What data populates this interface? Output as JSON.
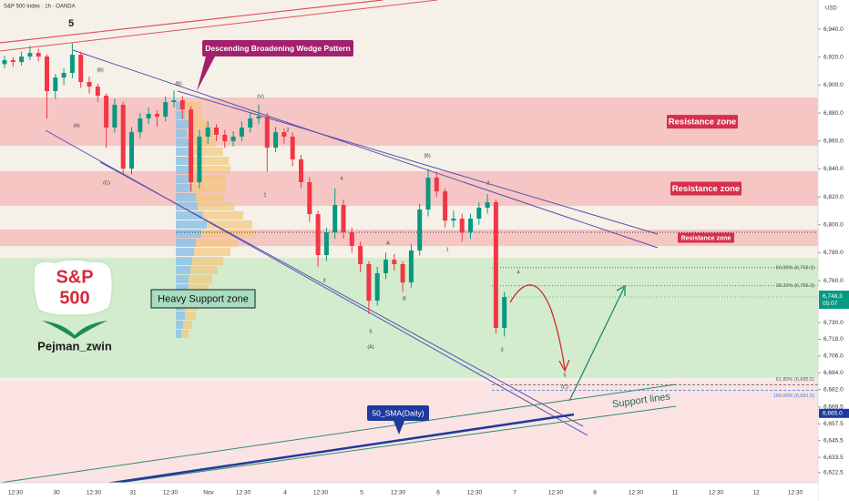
{
  "chart_data": {
    "type": "candlestick",
    "title": "S&P 500 Index · 1h · OANDA",
    "currency": "USD",
    "up_color": "#089981",
    "down_color": "#f23645",
    "ohlc": [
      [
        6915.0,
        6921,
        6912,
        6917.8
      ],
      [
        6917.8,
        6920,
        6913,
        6916.5
      ],
      [
        6916.5,
        6924,
        6914,
        6920.4
      ],
      [
        6920.4,
        6928,
        6918,
        6923.0
      ],
      [
        6923.0,
        6926,
        6917,
        6920.4
      ],
      [
        6920.4,
        6922,
        6876,
        6895.7
      ],
      [
        6895.7,
        6908,
        6890,
        6905.4
      ],
      [
        6905.4,
        6912,
        6900,
        6908.7
      ],
      [
        6908.7,
        6930,
        6905,
        6921.7
      ],
      [
        6921.7,
        6924,
        6898,
        6902.2
      ],
      [
        6902.2,
        6906,
        6894,
        6898.9
      ],
      [
        6898.9,
        6901,
        6888,
        6892.4
      ],
      [
        6892.4,
        6894,
        6855,
        6869.6
      ],
      [
        6869.6,
        6890,
        6866,
        6885.9
      ],
      [
        6885.9,
        6888,
        6836,
        6840.2
      ],
      [
        6840.2,
        6870,
        6836,
        6866.3
      ],
      [
        6866.3,
        6880,
        6862,
        6876.1
      ],
      [
        6876.1,
        6884,
        6872,
        6879.4
      ],
      [
        6879.4,
        6882,
        6870,
        6877.4
      ],
      [
        6877.4,
        6892,
        6874,
        6887.8
      ],
      [
        6887.8,
        6896,
        6884,
        6889.1
      ],
      [
        6889.1,
        6892,
        6876,
        6882.6
      ],
      [
        6882.6,
        6885,
        6824,
        6830.5
      ],
      [
        6830.5,
        6868,
        6826,
        6863.1
      ],
      [
        6863.1,
        6874,
        6858,
        6869.6
      ],
      [
        6869.6,
        6872,
        6860,
        6864.4
      ],
      [
        6864.4,
        6868,
        6855,
        6859.8
      ],
      [
        6859.8,
        6867,
        6856,
        6863.1
      ],
      [
        6863.1,
        6874,
        6860,
        6869.6
      ],
      [
        6869.6,
        6880,
        6866,
        6876.1
      ],
      [
        6876.1,
        6886,
        6872,
        6877.4
      ],
      [
        6877.4,
        6880,
        6838,
        6855.2
      ],
      [
        6855.2,
        6870,
        6852,
        6866.3
      ],
      [
        6866.3,
        6869,
        6858,
        6863.1
      ],
      [
        6863.1,
        6866,
        6842,
        6846.8
      ],
      [
        6846.8,
        6850,
        6826,
        6830.5
      ],
      [
        6830.5,
        6834,
        6802,
        6807.6
      ],
      [
        6807.6,
        6810,
        6770,
        6778.3
      ],
      [
        6778.3,
        6798,
        6774,
        6794.6
      ],
      [
        6794.6,
        6826,
        6790,
        6814.2
      ],
      [
        6814.2,
        6818,
        6790,
        6794.6
      ],
      [
        6794.6,
        6798,
        6780,
        6784.8
      ],
      [
        6784.8,
        6788,
        6766,
        6771.8
      ],
      [
        6771.8,
        6774,
        6736,
        6745.7
      ],
      [
        6745.7,
        6770,
        6742,
        6765.3
      ],
      [
        6765.3,
        6780,
        6761,
        6775.0
      ],
      [
        6775.0,
        6779,
        6767,
        6771.8
      ],
      [
        6771.8,
        6774,
        6752,
        6758.7
      ],
      [
        6758.7,
        6786,
        6755,
        6781.6
      ],
      [
        6781.6,
        6815,
        6778,
        6810.9
      ],
      [
        6810.9,
        6840,
        6806,
        6833.7
      ],
      [
        6833.7,
        6838,
        6820,
        6823.9
      ],
      [
        6823.9,
        6826,
        6798,
        6803.0
      ],
      [
        6803.0,
        6810,
        6798,
        6804.4
      ],
      [
        6804.4,
        6808,
        6788,
        6794.6
      ],
      [
        6794.6,
        6808,
        6790,
        6804.4
      ],
      [
        6804.4,
        6816,
        6800,
        6812.2
      ],
      [
        6812.2,
        6822,
        6808,
        6816.1
      ],
      [
        6816.1,
        6818,
        6722,
        6726.1
      ],
      [
        6726.1,
        6752,
        6720,
        6748.3
      ]
    ],
    "ylim": [
      6615.3,
      6960.9
    ],
    "yticks": [
      {
        "value": 6940,
        "label": "6,940.0"
      },
      {
        "value": 6920,
        "label": "6,920.0"
      },
      {
        "value": 6900,
        "label": "6,900.0"
      },
      {
        "value": 6880,
        "label": "6,880.0"
      },
      {
        "value": 6860,
        "label": "6,860.0"
      },
      {
        "value": 6840,
        "label": "6,840.0"
      },
      {
        "value": 6820,
        "label": "6,820.0"
      },
      {
        "value": 6800,
        "label": "6,800.0"
      },
      {
        "value": 6780,
        "label": "6,780.0"
      },
      {
        "value": 6760,
        "label": "6,760.0"
      },
      {
        "value": 6730,
        "label": "6,730.0"
      },
      {
        "value": 6718,
        "label": "6,718.0"
      },
      {
        "value": 6706,
        "label": "6,706.0"
      },
      {
        "value": 6694,
        "label": "6,694.0"
      },
      {
        "value": 6682,
        "label": "6,682.0"
      },
      {
        "value": 6669.5,
        "label": "6,669.5"
      },
      {
        "value": 6657.5,
        "label": "6,657.5"
      },
      {
        "value": 6645.5,
        "label": "6,645.5"
      },
      {
        "value": 6633.5,
        "label": "6,633.5"
      },
      {
        "value": 6622.5,
        "label": "6,622.5"
      }
    ],
    "x_labels": [
      "12:30",
      "30",
      "12:30",
      "31",
      "12:30",
      "Nov",
      "12:30",
      "4",
      "12:30",
      "5",
      "12:30",
      "6",
      "12:30",
      "7",
      "12:30",
      "8",
      "12:30",
      "11",
      "12:30",
      "12",
      "12:30"
    ],
    "last_price": {
      "value": 6748.3,
      "label": "6,748.3"
    },
    "countdown": "05:07",
    "sma_price": {
      "value": 6665.0,
      "label": "6,665.0"
    },
    "zones": [
      {
        "label": "Resistance zone",
        "hi": 6891.1,
        "lo": 6856.5,
        "color": "#f5c6c4"
      },
      {
        "label": "Resistance zone",
        "hi": 6838.3,
        "lo": 6813.5,
        "color": "#f5c6c4"
      },
      {
        "label": "Resistance zone",
        "hi": 6796.6,
        "lo": 6784.8,
        "color": "#f5c6c4"
      },
      {
        "label": "Heavy Support zone",
        "hi": 6776.3,
        "lo": 6690.3,
        "color": "#d3ecce"
      }
    ],
    "fib_levels": [
      {
        "label": "50.00% (6,769.3)",
        "value": 6769.3
      },
      {
        "label": "38.20% (6,756.3)",
        "value": 6756.3
      },
      {
        "label": "61.80% (6,685.5)",
        "value": 6685.5
      },
      {
        "label": "100.00% (6,681.5)",
        "value": 6681.5
      }
    ],
    "wave_top": "5",
    "wave_labels": [
      "(A)",
      "(B)",
      "(C)",
      "(B)",
      "(V)",
      "2",
      "1",
      "4",
      "3",
      "5",
      "(A)",
      "(B)",
      "A",
      "B",
      "1",
      "2",
      "4",
      "3",
      "5",
      "(C)"
    ],
    "pattern_label": "Descending Broadening Wedge Pattern",
    "support_label": "Support lines",
    "sma_label": "50_SMA(Daily)",
    "logo_top": "S&P",
    "logo_bottom": "500",
    "author": "Pejman_zwin"
  }
}
